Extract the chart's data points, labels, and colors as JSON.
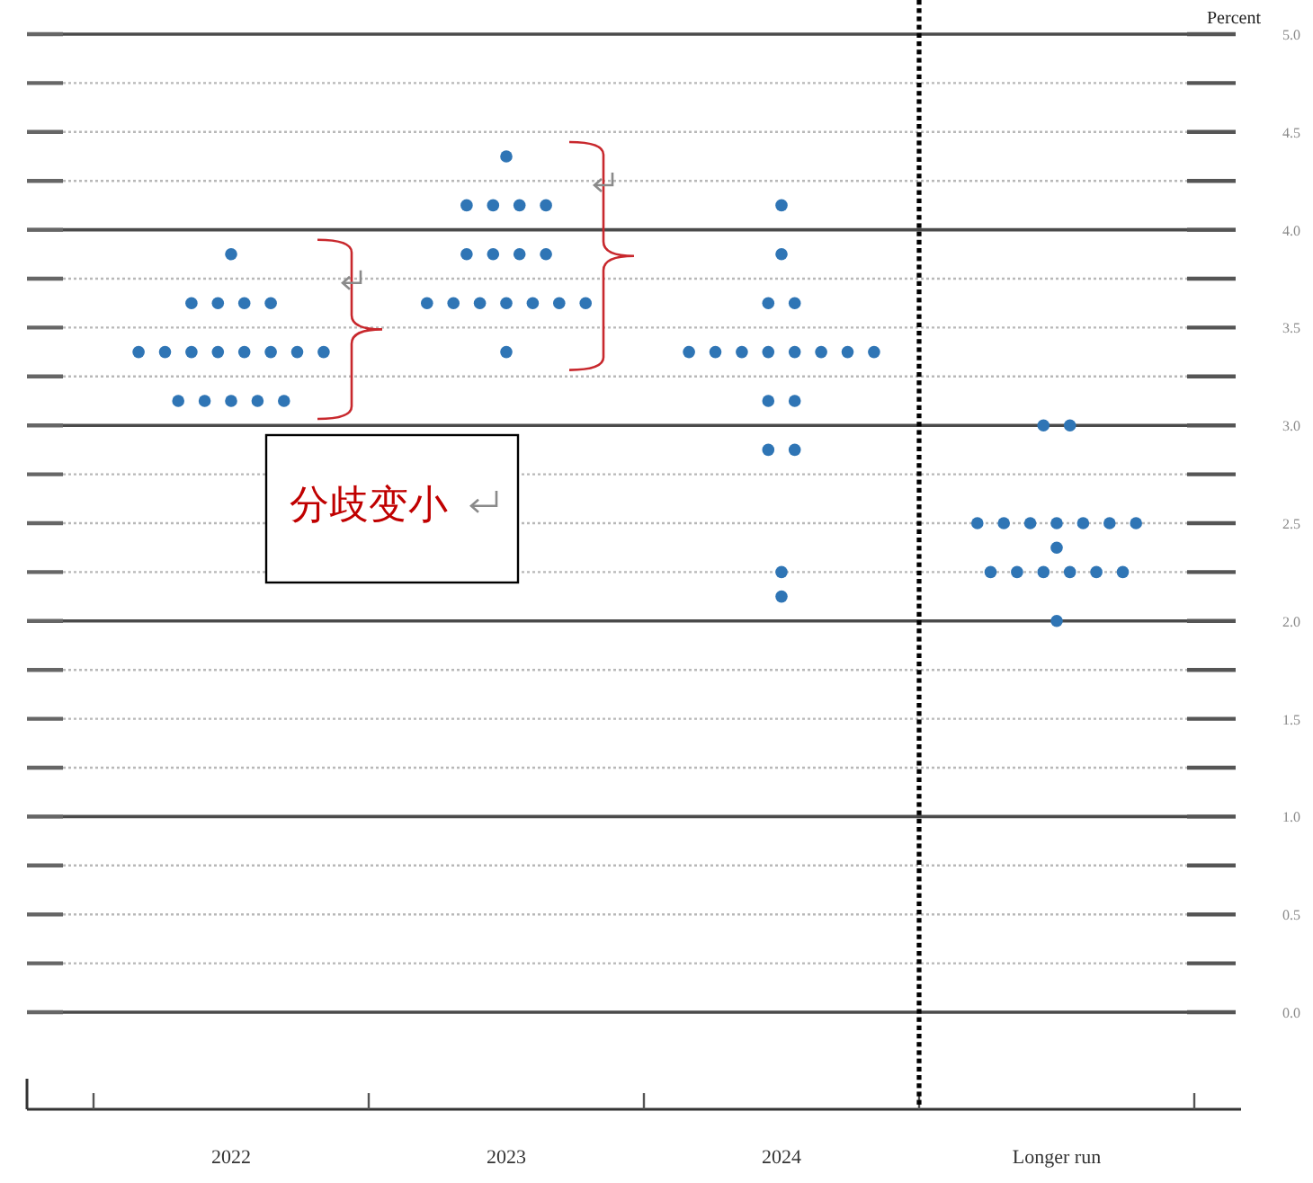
{
  "chart_data": {
    "type": "scatter",
    "ylabel": "Percent",
    "categories": [
      "2022",
      "2023",
      "2024",
      "Longer run"
    ],
    "series": [
      {
        "color": "#2f75b5",
        "values": [
          3.875,
          4.375,
          4.125,
          3
        ]
      },
      {
        "color": "#2f75b5",
        "values": [
          3.625,
          4.125,
          3.875,
          3
        ]
      },
      {
        "color": "#2f75b5",
        "values": [
          3.625,
          4.125,
          3.625,
          2.5
        ]
      },
      {
        "color": "#2f75b5",
        "values": [
          3.625,
          4.125,
          3.625,
          2.5
        ]
      },
      {
        "color": "#2f75b5",
        "values": [
          3.625,
          4.125,
          3.375,
          2.5
        ]
      },
      {
        "color": "#2f75b5",
        "values": [
          3.375,
          3.875,
          3.375,
          2.5
        ]
      },
      {
        "color": "#2f75b5",
        "values": [
          3.375,
          3.875,
          3.375,
          2.5
        ]
      },
      {
        "color": "#2f75b5",
        "values": [
          3.375,
          3.875,
          3.375,
          2.5
        ]
      },
      {
        "color": "#2f75b5",
        "values": [
          3.375,
          3.875,
          3.375,
          2.5
        ]
      },
      {
        "color": "#2f75b5",
        "values": [
          3.375,
          3.625,
          3.375,
          2.375
        ]
      },
      {
        "color": "#2f75b5",
        "values": [
          3.375,
          3.625,
          3.375,
          2.25
        ]
      },
      {
        "color": "#2f75b5",
        "values": [
          3.375,
          3.625,
          3.375,
          2.25
        ]
      },
      {
        "color": "#2f75b5",
        "values": [
          3.375,
          3.625,
          3.125,
          2.25
        ]
      },
      {
        "color": "#2f75b5",
        "values": [
          3.125,
          3.625,
          3.125,
          2.25
        ]
      },
      {
        "color": "#2f75b5",
        "values": [
          3.125,
          3.625,
          2.875,
          2.25
        ]
      },
      {
        "color": "#2f75b5",
        "values": [
          3.125,
          3.625,
          2.875,
          2.25
        ]
      },
      {
        "color": "#2f75b5",
        "values": [
          3.125,
          3.375,
          2.25,
          2
        ]
      },
      {
        "color": "#2f75b5",
        "values": [
          3.125,
          null,
          2.125,
          null
        ]
      }
    ],
    "ylim": [
      0,
      5
    ],
    "yticks": [
      {
        "value": 0,
        "label": "0.0"
      },
      {
        "value": 0.25,
        "label": null
      },
      0.5,
      {
        "value": 0.75,
        "label": null
      },
      {
        "value": 1,
        "label": "1.0"
      },
      {
        "value": 1.25,
        "label": null
      },
      1.5,
      {
        "value": 1.75,
        "label": null
      },
      {
        "value": 2,
        "label": "2.0"
      },
      {
        "value": 2.25,
        "label": null
      },
      2.5,
      {
        "value": 2.75,
        "label": null
      },
      {
        "value": 3,
        "label": "3.0"
      },
      {
        "value": 3.25,
        "label": null
      },
      3.5,
      {
        "value": 3.75,
        "label": null
      },
      {
        "value": 4,
        "label": "4.0"
      },
      {
        "value": 4.25,
        "label": null
      },
      4.5,
      {
        "value": 4.75,
        "label": null
      },
      {
        "value": 5,
        "label": "5.0"
      }
    ],
    "grid": "y",
    "marker": "circle",
    "annotations": [
      "分歧变小"
    ]
  }
}
